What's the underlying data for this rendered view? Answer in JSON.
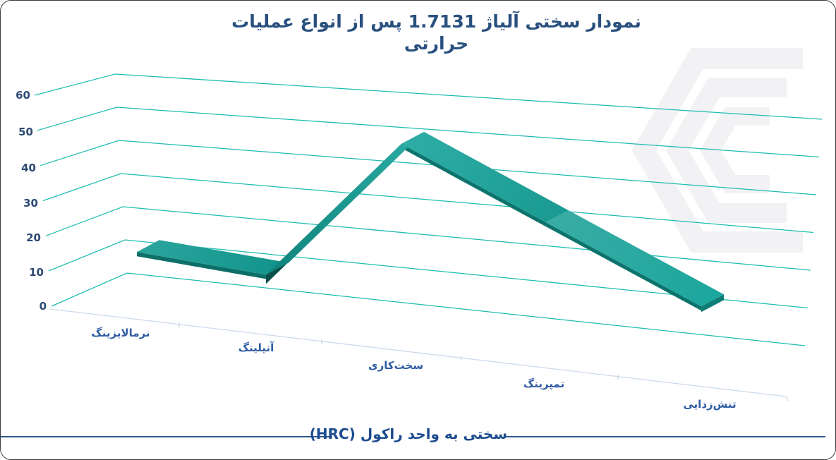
{
  "title": {
    "line1": "نمودار سختی آلیاژ  1.7131 پس از انواع عملیات",
    "line2": "حرارتی",
    "full": "نمودار سختی آلیاژ 1.7131 پس از انواع عملیات حرارتی"
  },
  "y_axis": {
    "ticks": [
      "60",
      "50",
      "40",
      "30",
      "20",
      "10",
      "0"
    ]
  },
  "x_axis": {
    "categories": [
      "نرمالایزینگ",
      "آنیلینگ",
      "سخت‌کاری",
      "تمپرینگ",
      "تنش‌زدایی"
    ]
  },
  "footer": {
    "text": "سختی به واحد راکول (HRC)"
  },
  "colors": {
    "title": "#29507e",
    "y_tick": "#2c4a73",
    "category": "#2e5ba3",
    "footer_text": "#1d4c8f",
    "footer_rule": "#2f5788",
    "gridline": "#1dbcb0",
    "category_axis": "#ccd9ea",
    "ribbon_top": "#1aa096",
    "ribbon_side": "#0b4f4a",
    "watermark": "#f2f2f4"
  },
  "chart_data": {
    "type": "line",
    "style": "3d-ribbon",
    "title": "نمودار سختی آلیاژ 1.7131 پس از انواع عملیات حرارتی",
    "categories": [
      "نرمالایزینگ",
      "آنیلینگ",
      "سخت‌کاری",
      "تمپرینگ",
      "تنش‌زدایی"
    ],
    "values": [
      11,
      8,
      49,
      30,
      11
    ],
    "unit": "HRC",
    "ylabel": "سختی به واحد راکول (HRC)",
    "yticks": [
      0,
      10,
      20,
      30,
      40,
      50,
      60
    ],
    "ylim": [
      0,
      60
    ],
    "grid": true,
    "legend": false,
    "series_color": "#1aa096"
  }
}
